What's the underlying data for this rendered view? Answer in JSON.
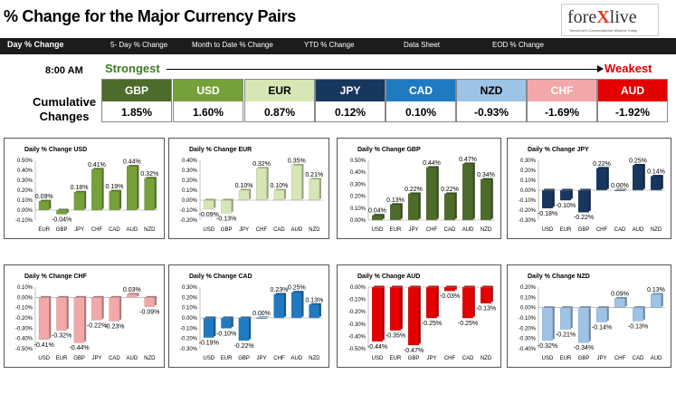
{
  "header": {
    "title": "% Change for the Major Currency Pairs",
    "logo": {
      "prefix": "fore",
      "x": "X",
      "suffix": "live",
      "tagline": "Tomorrow's Conversational Window Today"
    }
  },
  "nav": {
    "items": [
      "Day % Change",
      "5- Day % Change",
      "Month to Date % Change",
      "YTD % Change",
      "Data Sheet",
      "EOD % Change"
    ]
  },
  "summary": {
    "time": "8:00 AM",
    "strongest_label": "Strongest",
    "weakest_label": "Weakest",
    "cumulative_label_line1": "Cumulative",
    "cumulative_label_line2": "Changes",
    "currencies": [
      {
        "name": "GBP",
        "value": "1.85%",
        "bg": "#4d6b2a",
        "fg": "#ffffff"
      },
      {
        "name": "USD",
        "value": "1.60%",
        "bg": "#76a03a",
        "fg": "#ffffff"
      },
      {
        "name": "EUR",
        "value": "0.87%",
        "bg": "#d6e6b4",
        "fg": "#000000"
      },
      {
        "name": "JPY",
        "value": "0.12%",
        "bg": "#17375e",
        "fg": "#ffffff"
      },
      {
        "name": "CAD",
        "value": "0.10%",
        "bg": "#1f7ac2",
        "fg": "#ffffff"
      },
      {
        "name": "NZD",
        "value": "-0.93%",
        "bg": "#9dc3e6",
        "fg": "#000000"
      },
      {
        "name": "CHF",
        "value": "-1.69%",
        "bg": "#f2a8a8",
        "fg": "#ffffff"
      },
      {
        "name": "AUD",
        "value": "-1.92%",
        "bg": "#e40000",
        "fg": "#ffffff"
      }
    ]
  },
  "chart_data": [
    {
      "type": "bar",
      "title": "Daily % Change USD",
      "categories": [
        "EUR",
        "GBP",
        "JPY",
        "CHF",
        "CAD",
        "AUD",
        "NZD"
      ],
      "values": [
        0.09,
        -0.04,
        0.18,
        0.41,
        0.19,
        0.44,
        0.32
      ],
      "value_labels": [
        "0.09%",
        "-0.04%",
        "0.18%",
        "0.41%",
        "0.19%",
        "0.44%",
        "0.32%"
      ],
      "ylim": [
        -0.1,
        0.5
      ],
      "yticks": [
        "-0.10%",
        "0.00%",
        "0.10%",
        "0.20%",
        "0.30%",
        "0.40%",
        "0.50%"
      ],
      "ytick_values": [
        -0.1,
        0.0,
        0.1,
        0.2,
        0.3,
        0.4,
        0.5
      ],
      "color": "#76a03a",
      "grid": false
    },
    {
      "type": "bar",
      "title": "Daily % Change EUR",
      "categories": [
        "USD",
        "GBP",
        "JPY",
        "CHF",
        "CAD",
        "AUD",
        "NZD"
      ],
      "values": [
        -0.09,
        -0.13,
        0.1,
        0.32,
        0.1,
        0.35,
        0.21
      ],
      "value_labels": [
        "-0.09%",
        "-0.13%",
        "0.10%",
        "0.32%",
        "0.10%",
        "0.35%",
        "0.21%"
      ],
      "ylim": [
        -0.2,
        0.4
      ],
      "yticks": [
        "-0.20%",
        "-0.10%",
        "0.00%",
        "0.10%",
        "0.20%",
        "0.30%",
        "0.40%"
      ],
      "ytick_values": [
        -0.2,
        -0.1,
        0.0,
        0.1,
        0.2,
        0.3,
        0.4
      ],
      "color": "#d6e6b4",
      "grid": false
    },
    {
      "type": "bar",
      "title": "Daily % Change GBP",
      "categories": [
        "USD",
        "EUR",
        "JPY",
        "CHF",
        "CAD",
        "AUD",
        "NZD"
      ],
      "values": [
        0.04,
        0.13,
        0.22,
        0.44,
        0.22,
        0.47,
        0.34
      ],
      "value_labels": [
        "0.04%",
        "0.13%",
        "0.22%",
        "0.44%",
        "0.22%",
        "0.47%",
        "0.34%"
      ],
      "ylim": [
        0.0,
        0.5
      ],
      "yticks": [
        "0.00%",
        "0.10%",
        "0.20%",
        "0.30%",
        "0.40%",
        "0.50%"
      ],
      "ytick_values": [
        0.0,
        0.1,
        0.2,
        0.3,
        0.4,
        0.5
      ],
      "color": "#4d6b2a",
      "grid": false
    },
    {
      "type": "bar",
      "title": "Daily % Change JPY",
      "categories": [
        "USD",
        "EUR",
        "GBP",
        "CHF",
        "CAD",
        "AUD",
        "NZD"
      ],
      "values": [
        -0.18,
        -0.1,
        -0.22,
        0.22,
        0.0,
        0.25,
        0.14
      ],
      "value_labels": [
        "-0.18%",
        "-0.10%",
        "-0.22%",
        "0.22%",
        "0.00%",
        "0.25%",
        "0.14%"
      ],
      "ylim": [
        -0.3,
        0.3
      ],
      "yticks": [
        "-0.30%",
        "-0.20%",
        "-0.10%",
        "0.00%",
        "0.10%",
        "0.20%",
        "0.30%"
      ],
      "ytick_values": [
        -0.3,
        -0.2,
        -0.1,
        0.0,
        0.1,
        0.2,
        0.3
      ],
      "color": "#17375e",
      "grid": false
    },
    {
      "type": "bar",
      "title": "Daily % Change CHF",
      "categories": [
        "USD",
        "EUR",
        "GBP",
        "JPY",
        "CAD",
        "AUD",
        "NZD"
      ],
      "values": [
        -0.41,
        -0.32,
        -0.44,
        -0.22,
        -0.23,
        0.03,
        -0.09
      ],
      "value_labels": [
        "-0.41%",
        "-0.32%",
        "-0.44%",
        "-0.22%",
        "-0.23%",
        "0.03%",
        "-0.09%"
      ],
      "ylim": [
        -0.5,
        0.1
      ],
      "yticks": [
        "-0.50%",
        "-0.40%",
        "-0.30%",
        "-0.20%",
        "-0.10%",
        "0.00%",
        "0.10%"
      ],
      "ytick_values": [
        -0.5,
        -0.4,
        -0.3,
        -0.2,
        -0.1,
        0.0,
        0.1
      ],
      "color": "#f2a8a8",
      "grid": false
    },
    {
      "type": "bar",
      "title": "Daily % Change CAD",
      "categories": [
        "USD",
        "EUR",
        "GBP",
        "JPY",
        "CHF",
        "AUD",
        "NZD"
      ],
      "values": [
        -0.19,
        -0.1,
        -0.22,
        0.0,
        0.23,
        0.25,
        0.13
      ],
      "value_labels": [
        "-0.19%",
        "-0.10%",
        "-0.22%",
        "0.00%",
        "0.23%",
        "0.25%",
        "0.13%"
      ],
      "ylim": [
        -0.3,
        0.3
      ],
      "yticks": [
        "-0.30%",
        "-0.20%",
        "-0.10%",
        "0.00%",
        "0.10%",
        "0.20%",
        "0.30%"
      ],
      "ytick_values": [
        -0.3,
        -0.2,
        -0.1,
        0.0,
        0.1,
        0.2,
        0.3
      ],
      "color": "#1f7ac2",
      "grid": false
    },
    {
      "type": "bar",
      "title": "Daily % Change AUD",
      "categories": [
        "USD",
        "EUR",
        "GBP",
        "JPY",
        "CHF",
        "CAD",
        "NZD"
      ],
      "values": [
        -0.44,
        -0.35,
        -0.47,
        -0.25,
        -0.03,
        -0.25,
        -0.13
      ],
      "value_labels": [
        "-0.44%",
        "-0.35%",
        "-0.47%",
        "-0.25%",
        "-0.03%",
        "-0.25%",
        "-0.13%"
      ],
      "ylim": [
        -0.5,
        0.0
      ],
      "yticks": [
        "-0.50%",
        "-0.40%",
        "-0.30%",
        "-0.20%",
        "-0.10%",
        "0.00%"
      ],
      "ytick_values": [
        -0.5,
        -0.4,
        -0.3,
        -0.2,
        -0.1,
        0.0
      ],
      "color": "#e40000",
      "grid": false
    },
    {
      "type": "bar",
      "title": "Daily % Change NZD",
      "categories": [
        "USD",
        "EUR",
        "GBP",
        "JPY",
        "CHF",
        "CAD",
        "AUD"
      ],
      "values": [
        -0.32,
        -0.21,
        -0.34,
        -0.14,
        0.09,
        -0.13,
        0.13
      ],
      "value_labels": [
        "-0.32%",
        "-0.21%",
        "-0.34%",
        "-0.14%",
        "0.09%",
        "-0.13%",
        "0.13%"
      ],
      "ylim": [
        -0.4,
        0.2
      ],
      "yticks": [
        "-0.40%",
        "-0.30%",
        "-0.20%",
        "-0.10%",
        "0.00%",
        "0.10%",
        "0.20%"
      ],
      "ytick_values": [
        -0.4,
        -0.3,
        -0.2,
        -0.1,
        0.0,
        0.1,
        0.2
      ],
      "color": "#9dc3e6",
      "grid": false
    }
  ]
}
